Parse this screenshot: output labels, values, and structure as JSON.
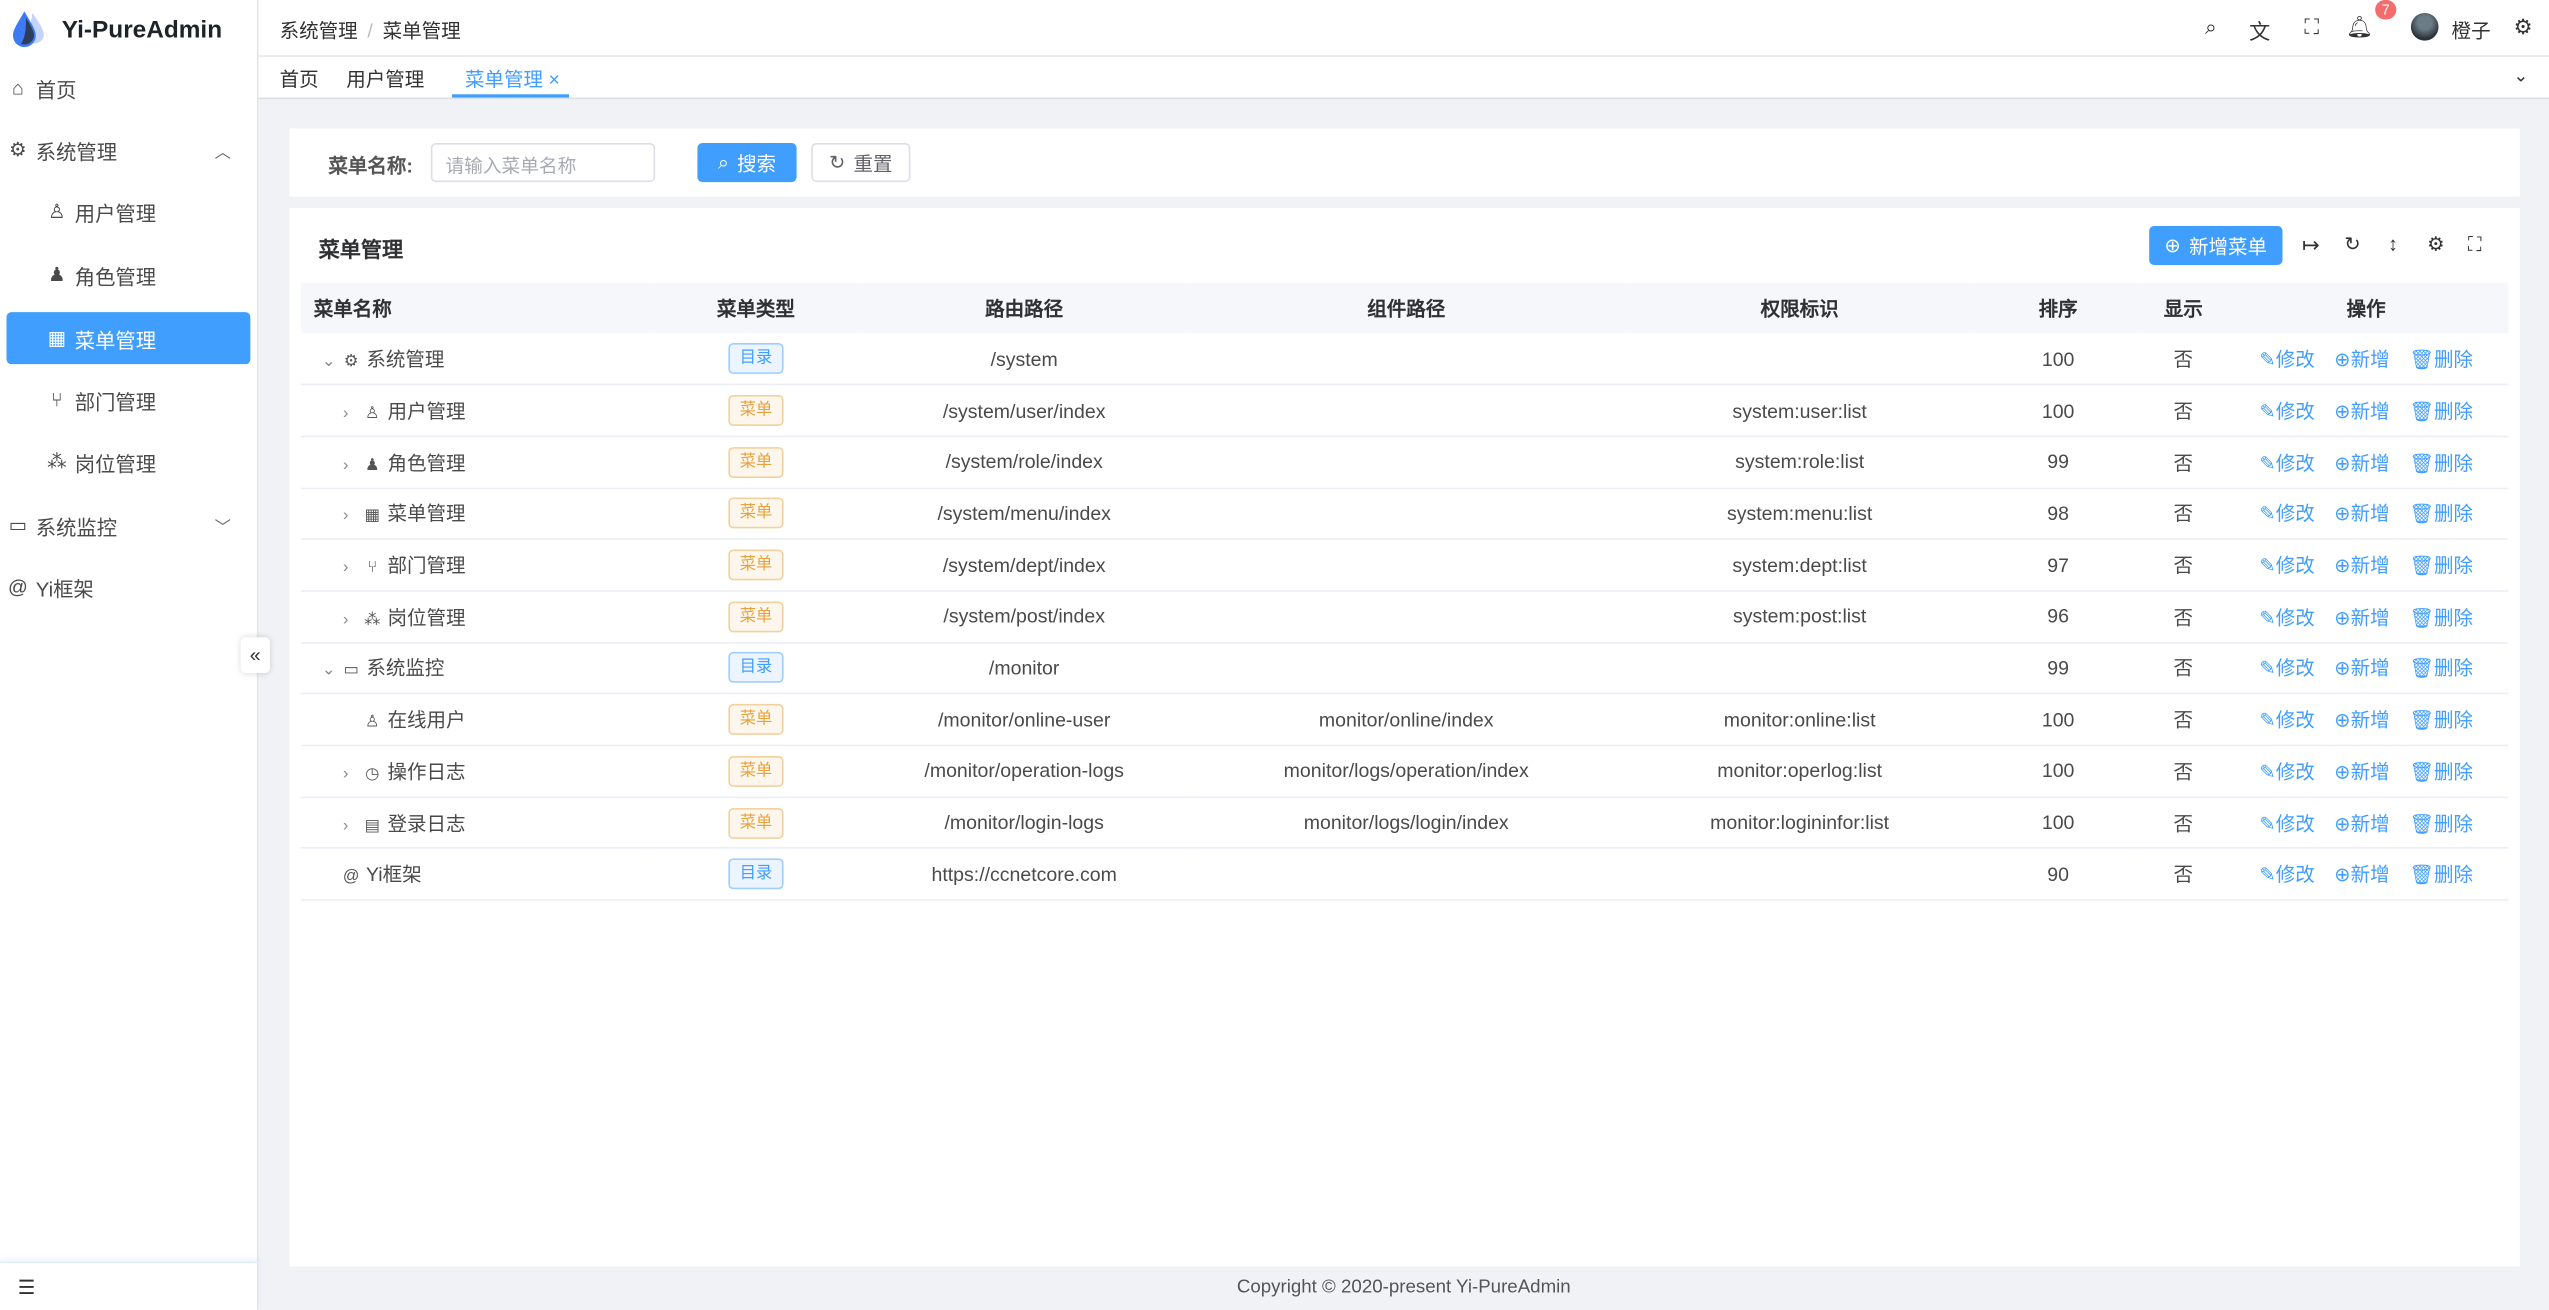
{
  "app": {
    "title": "Yi-PureAdmin",
    "brand_color": "#409eff"
  },
  "sidebar": {
    "items": [
      {
        "label": "首页",
        "icon": "home-icon"
      },
      {
        "label": "系统管理",
        "icon": "gear-icon",
        "expanded": true
      },
      {
        "label": "用户管理",
        "icon": "user-icon"
      },
      {
        "label": "角色管理",
        "icon": "user-filled-icon"
      },
      {
        "label": "菜单管理",
        "icon": "grid-icon",
        "active": true
      },
      {
        "label": "部门管理",
        "icon": "branch-icon"
      },
      {
        "label": "岗位管理",
        "icon": "network-icon"
      },
      {
        "label": "系统监控",
        "icon": "monitor-icon",
        "expanded": false
      },
      {
        "label": "Yi框架",
        "icon": "at-icon"
      }
    ]
  },
  "header": {
    "breadcrumb": [
      "系统管理",
      "菜单管理"
    ],
    "notification_count": "7",
    "username": "橙子"
  },
  "tabs": [
    {
      "label": "首页"
    },
    {
      "label": "用户管理"
    },
    {
      "label": "菜单管理",
      "active": true
    }
  ],
  "search": {
    "label": "菜单名称:",
    "placeholder": "请输入菜单名称",
    "search_label": "搜索",
    "reset_label": "重置"
  },
  "table_card": {
    "title": "菜单管理",
    "add_label": "新增菜单"
  },
  "columns": [
    "菜单名称",
    "菜单类型",
    "路由路径",
    "组件路径",
    "权限标识",
    "排序",
    "显示",
    "操作"
  ],
  "actions": {
    "edit": "修改",
    "add": "新增",
    "delete": "删除"
  },
  "rows": [
    {
      "name": "系统管理",
      "icon": "gear-icon",
      "expand": "expanded",
      "level": 0,
      "type": "目录",
      "route": "/system",
      "component": "",
      "perm": "",
      "sort": "100",
      "show": "否"
    },
    {
      "name": "用户管理",
      "icon": "user-icon",
      "expand": "collapsed",
      "level": 1,
      "type": "菜单",
      "route": "/system/user/index",
      "component": "",
      "perm": "system:user:list",
      "sort": "100",
      "show": "否"
    },
    {
      "name": "角色管理",
      "icon": "user-filled-icon",
      "expand": "collapsed",
      "level": 1,
      "type": "菜单",
      "route": "/system/role/index",
      "component": "",
      "perm": "system:role:list",
      "sort": "99",
      "show": "否"
    },
    {
      "name": "菜单管理",
      "icon": "grid-icon",
      "expand": "collapsed",
      "level": 1,
      "type": "菜单",
      "route": "/system/menu/index",
      "component": "",
      "perm": "system:menu:list",
      "sort": "98",
      "show": "否"
    },
    {
      "name": "部门管理",
      "icon": "branch-icon",
      "expand": "collapsed",
      "level": 1,
      "type": "菜单",
      "route": "/system/dept/index",
      "component": "",
      "perm": "system:dept:list",
      "sort": "97",
      "show": "否"
    },
    {
      "name": "岗位管理",
      "icon": "network-icon",
      "expand": "collapsed",
      "level": 1,
      "type": "菜单",
      "route": "/system/post/index",
      "component": "",
      "perm": "system:post:list",
      "sort": "96",
      "show": "否"
    },
    {
      "name": "系统监控",
      "icon": "monitor-icon",
      "expand": "expanded",
      "level": 0,
      "type": "目录",
      "route": "/monitor",
      "component": "",
      "perm": "",
      "sort": "99",
      "show": "否"
    },
    {
      "name": "在线用户",
      "icon": "user-online-icon",
      "expand": "none",
      "level": 1,
      "type": "菜单",
      "route": "/monitor/online-user",
      "component": "monitor/online/index",
      "perm": "monitor:online:list",
      "sort": "100",
      "show": "否"
    },
    {
      "name": "操作日志",
      "icon": "history-icon",
      "expand": "collapsed",
      "level": 1,
      "type": "菜单",
      "route": "/monitor/operation-logs",
      "component": "monitor/logs/operation/index",
      "perm": "monitor:operlog:list",
      "sort": "100",
      "show": "否"
    },
    {
      "name": "登录日志",
      "icon": "window-icon",
      "expand": "collapsed",
      "level": 1,
      "type": "菜单",
      "route": "/monitor/login-logs",
      "component": "monitor/logs/login/index",
      "perm": "monitor:logininfor:list",
      "sort": "100",
      "show": "否"
    },
    {
      "name": "Yi框架",
      "icon": "at-icon",
      "expand": "none",
      "level": 0,
      "type": "目录",
      "route": "https://ccnetcore.com",
      "component": "",
      "perm": "",
      "sort": "90",
      "show": "否"
    }
  ],
  "footer": {
    "copyright": "Copyright © 2020-present Yi-PureAdmin"
  }
}
